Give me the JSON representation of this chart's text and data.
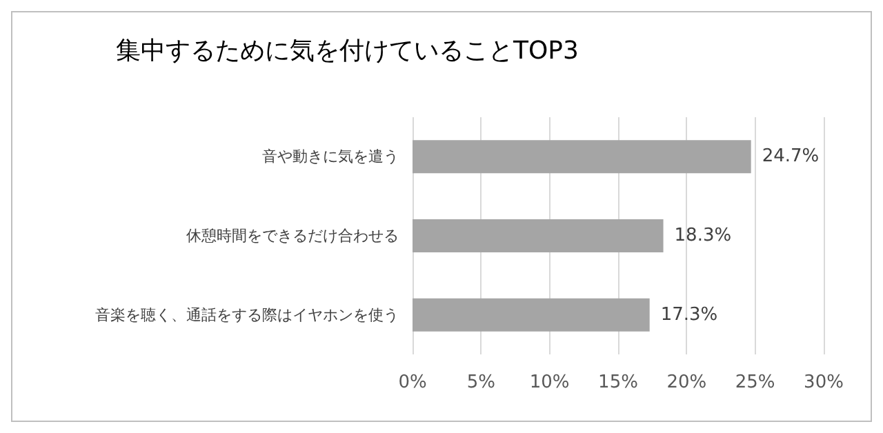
{
  "chart_data": {
    "type": "bar",
    "orientation": "horizontal",
    "title": "集中するために気を付けていることTOP3",
    "categories": [
      "音や動きに気を遣う",
      "休憩時間をできるだけ合わせる",
      "音楽を聴く、通話をする際はイヤホンを使う"
    ],
    "values": [
      24.7,
      18.3,
      17.3
    ],
    "value_labels": [
      "24.7%",
      "18.3%",
      "17.3%"
    ],
    "color": "#a5a5a5",
    "xlim": [
      0,
      30
    ],
    "xticks": [
      {
        "value": 0,
        "label": "0%"
      },
      {
        "value": 5,
        "label": "5%"
      },
      {
        "value": 10,
        "label": "10%"
      },
      {
        "value": 15,
        "label": "15%"
      },
      {
        "value": 20,
        "label": "20%"
      },
      {
        "value": 25,
        "label": "25%"
      },
      {
        "value": 30,
        "label": "30%"
      }
    ],
    "grid": "x"
  }
}
